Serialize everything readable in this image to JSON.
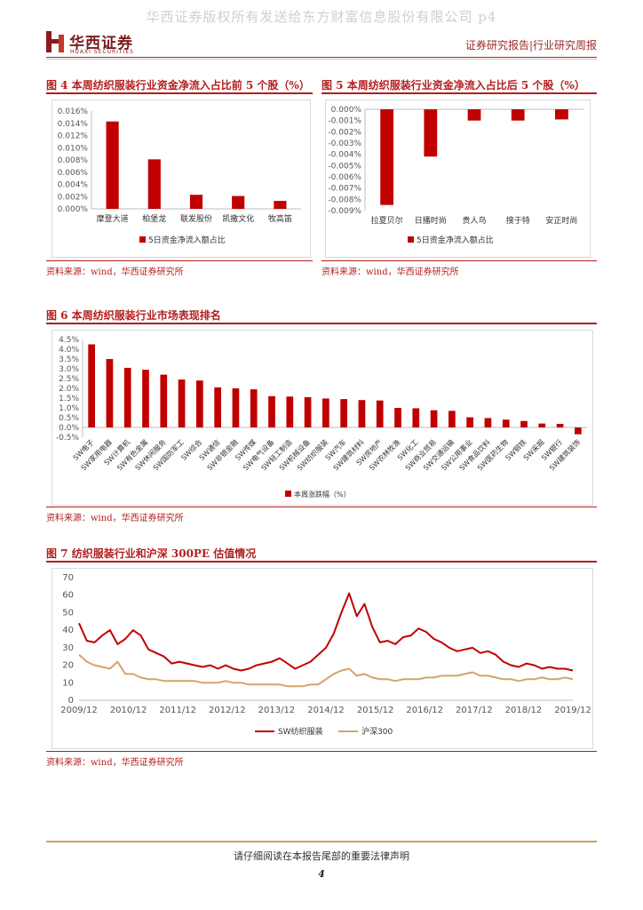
{
  "watermark": "华西证券版权所有发送给东方财富信息股份有限公司 p4",
  "header": {
    "logo_cn": "华西证券",
    "logo_en": "HUAXI SECURITIES",
    "report_type": "证券研究报告|行业研究周报"
  },
  "fig4": {
    "title": "图 4 本周纺织服装行业资金净流入占比前 5 个股（%）",
    "source": "资料来源：wind，华西证券研究所"
  },
  "fig5": {
    "title": "图 5 本周纺织服装行业资金净流入占比后 5 个股（%）",
    "source": "资料来源：wind，华西证券研究所"
  },
  "fig6": {
    "title": "图 6 本周纺织服装行业市场表现排名",
    "source": "资料来源：wind，华西证券研究所"
  },
  "fig7": {
    "title": "图 7 纺织服装行业和沪深 300PE 估值情况",
    "source": "资料来源：wind，华西证券研究所"
  },
  "footer": {
    "disclaimer": "请仔细阅读在本报告尾部的重要法律声明",
    "page": "4"
  },
  "chart_data": [
    {
      "type": "bar",
      "categories": [
        "摩登大道",
        "柏堡龙",
        "联发股份",
        "凯撒文化",
        "牧高笛"
      ],
      "values": [
        0.0143,
        0.0081,
        0.0023,
        0.0021,
        0.0013
      ],
      "ylim": [
        0,
        0.016
      ],
      "yticks": [
        "0.000%",
        "0.002%",
        "0.004%",
        "0.006%",
        "0.008%",
        "0.010%",
        "0.012%",
        "0.014%",
        "0.016%"
      ],
      "legend": "5日资金净流入额占比",
      "color": "#c00000"
    },
    {
      "type": "bar",
      "categories": [
        "拉夏贝尔",
        "日播时尚",
        "贵人鸟",
        "搜于特",
        "安正时尚"
      ],
      "values": [
        -0.0085,
        -0.0042,
        -0.001,
        -0.001,
        -0.0009
      ],
      "ylim": [
        -0.009,
        0
      ],
      "yticks": [
        "-0.009%",
        "-0.008%",
        "-0.007%",
        "-0.006%",
        "-0.005%",
        "-0.004%",
        "-0.003%",
        "-0.002%",
        "-0.001%",
        "0.000%"
      ],
      "legend": "5日资金净流入额占比",
      "color": "#c00000"
    },
    {
      "type": "bar",
      "categories": [
        "SW电子",
        "SW家用电器",
        "SW计算机",
        "SW有色金属",
        "SW休闲服务",
        "SW国防军工",
        "SW综合",
        "SW通信",
        "SW非银金融",
        "SW传媒",
        "SW电气设备",
        "SW轻工制造",
        "SW机械设备",
        "SW纺织服装",
        "SW汽车",
        "SW建筑材料",
        "SW房地产",
        "SW农林牧渔",
        "SW化工",
        "SW商业贸易",
        "SW交通运输",
        "SW公用事业",
        "SW食品饮料",
        "SW医药生物",
        "SW钢铁",
        "SW采掘",
        "SW银行",
        "SW建筑装饰"
      ],
      "values": [
        4.25,
        3.5,
        3.05,
        2.95,
        2.7,
        2.45,
        2.4,
        2.05,
        2.0,
        1.95,
        1.6,
        1.58,
        1.55,
        1.48,
        1.45,
        1.4,
        1.38,
        1.0,
        0.98,
        0.88,
        0.85,
        0.52,
        0.48,
        0.4,
        0.33,
        0.2,
        0.18,
        -0.35
      ],
      "ylim": [
        -0.5,
        4.5
      ],
      "yticks": [
        "-0.5%",
        "0.0%",
        "0.5%",
        "1.0%",
        "1.5%",
        "2.0%",
        "2.5%",
        "3.0%",
        "3.5%",
        "4.0%",
        "4.5%"
      ],
      "legend": "本周涨跌幅（%）",
      "color": "#c00000"
    },
    {
      "type": "line",
      "x_ticks": [
        "2009/12",
        "2010/12",
        "2011/12",
        "2012/12",
        "2013/12",
        "2014/12",
        "2015/12",
        "2016/12",
        "2017/12",
        "2018/12",
        "2019/12"
      ],
      "ylim": [
        0,
        70
      ],
      "yticks": [
        "0",
        "10",
        "20",
        "30",
        "40",
        "50",
        "60",
        "70"
      ],
      "series": [
        {
          "name": "SW纺织服装",
          "color": "#c00000",
          "values": [
            44,
            34,
            33,
            37,
            40,
            32,
            35,
            40,
            37,
            29,
            27,
            25,
            21,
            22,
            21,
            20,
            19,
            20,
            18,
            20,
            18,
            17,
            18,
            20,
            21,
            22,
            24,
            21,
            18,
            20,
            22,
            26,
            30,
            38,
            50,
            61,
            48,
            55,
            42,
            33,
            34,
            32,
            36,
            37,
            41,
            39,
            35,
            33,
            30,
            28,
            29,
            30,
            27,
            28,
            26,
            22,
            20,
            19,
            21,
            20,
            18,
            19,
            18,
            18,
            17
          ]
        },
        {
          "name": "沪深300",
          "color": "#d4a36a",
          "values": [
            26,
            22,
            20,
            19,
            18,
            22,
            15,
            15,
            13,
            12,
            12,
            11,
            11,
            11,
            11,
            11,
            10,
            10,
            10,
            11,
            10,
            10,
            9,
            9,
            9,
            9,
            9,
            8,
            8,
            8,
            9,
            9,
            12,
            15,
            17,
            18,
            14,
            15,
            13,
            12,
            12,
            11,
            12,
            12,
            12,
            13,
            13,
            14,
            14,
            14,
            15,
            16,
            14,
            14,
            13,
            12,
            12,
            11,
            12,
            12,
            13,
            12,
            12,
            13,
            12
          ]
        }
      ]
    }
  ]
}
